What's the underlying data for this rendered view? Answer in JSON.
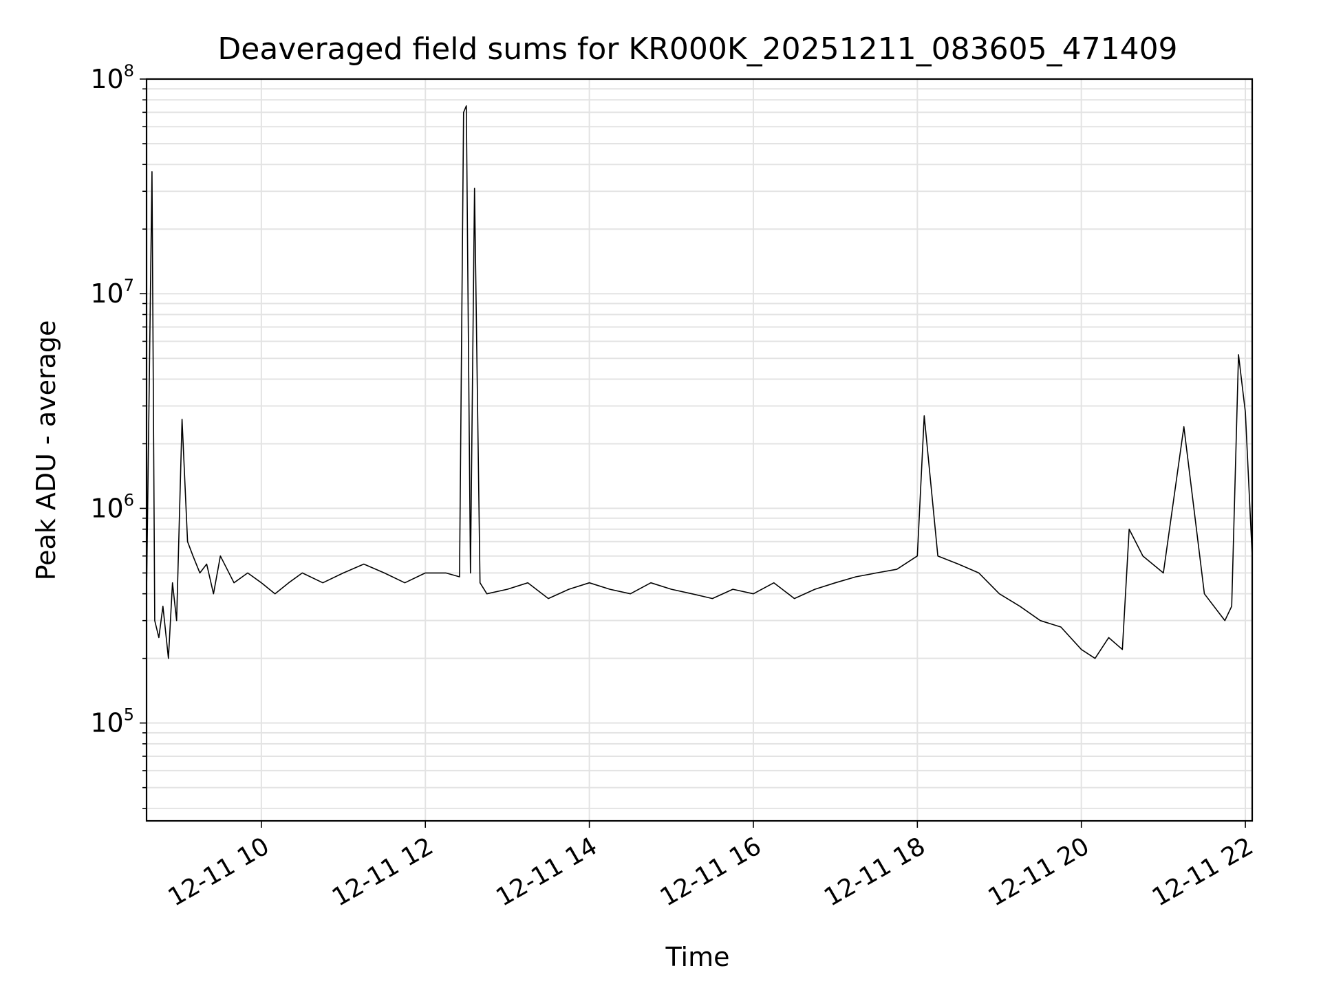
{
  "chart_data": {
    "type": "line",
    "title": "Deaveraged field sums for KR000K_20251211_083605_471409",
    "xlabel": "Time",
    "ylabel": "Peak ADU - average",
    "yscale": "log",
    "ylim": [
      35000,
      100000000
    ],
    "xlim": [
      "2025-12-11 08:36",
      "2025-12-11 22:05"
    ],
    "grid": true,
    "legend": "none",
    "line_color": "#000000",
    "x_ticks": [
      "12-11 10",
      "12-11 12",
      "12-11 14",
      "12-11 16",
      "12-11 18",
      "12-11 20",
      "12-11 22"
    ],
    "y_ticks": [
      {
        "base": "10",
        "exp": "5"
      },
      {
        "base": "10",
        "exp": "6"
      },
      {
        "base": "10",
        "exp": "7"
      },
      {
        "base": "10",
        "exp": "8"
      }
    ],
    "series": [
      {
        "x": [
          "2025-12-11 08:36",
          "2025-12-11 08:40",
          "2025-12-11 08:42",
          "2025-12-11 08:45",
          "2025-12-11 08:48",
          "2025-12-11 08:52",
          "2025-12-11 08:55",
          "2025-12-11 08:58",
          "2025-12-11 09:02",
          "2025-12-11 09:06",
          "2025-12-11 09:10",
          "2025-12-11 09:15",
          "2025-12-11 09:20",
          "2025-12-11 09:25",
          "2025-12-11 09:30",
          "2025-12-11 09:40",
          "2025-12-11 09:50",
          "2025-12-11 10:00",
          "2025-12-11 10:10",
          "2025-12-11 10:20",
          "2025-12-11 10:30",
          "2025-12-11 10:45",
          "2025-12-11 11:00",
          "2025-12-11 11:15",
          "2025-12-11 11:30",
          "2025-12-11 11:45",
          "2025-12-11 12:00",
          "2025-12-11 12:15",
          "2025-12-11 12:25",
          "2025-12-11 12:28",
          "2025-12-11 12:30",
          "2025-12-11 12:33",
          "2025-12-11 12:36",
          "2025-12-11 12:40",
          "2025-12-11 12:45",
          "2025-12-11 13:00",
          "2025-12-11 13:15",
          "2025-12-11 13:30",
          "2025-12-11 13:45",
          "2025-12-11 14:00",
          "2025-12-11 14:15",
          "2025-12-11 14:30",
          "2025-12-11 14:45",
          "2025-12-11 15:00",
          "2025-12-11 15:15",
          "2025-12-11 15:30",
          "2025-12-11 15:45",
          "2025-12-11 16:00",
          "2025-12-11 16:15",
          "2025-12-11 16:30",
          "2025-12-11 16:45",
          "2025-12-11 17:00",
          "2025-12-11 17:15",
          "2025-12-11 17:30",
          "2025-12-11 17:45",
          "2025-12-11 18:00",
          "2025-12-11 18:05",
          "2025-12-11 18:15",
          "2025-12-11 18:30",
          "2025-12-11 18:45",
          "2025-12-11 19:00",
          "2025-12-11 19:15",
          "2025-12-11 19:30",
          "2025-12-11 19:45",
          "2025-12-11 20:00",
          "2025-12-11 20:10",
          "2025-12-11 20:20",
          "2025-12-11 20:30",
          "2025-12-11 20:35",
          "2025-12-11 20:45",
          "2025-12-11 21:00",
          "2025-12-11 21:15",
          "2025-12-11 21:30",
          "2025-12-11 21:45",
          "2025-12-11 21:50",
          "2025-12-11 21:55",
          "2025-12-11 22:00",
          "2025-12-11 22:05"
        ],
        "y": [
          400000,
          37000000,
          300000,
          250000,
          350000,
          200000,
          450000,
          300000,
          2600000,
          700000,
          600000,
          500000,
          550000,
          400000,
          600000,
          450000,
          500000,
          450000,
          400000,
          450000,
          500000,
          450000,
          500000,
          550000,
          500000,
          450000,
          500000,
          500000,
          480000,
          70000000,
          75000000,
          500000,
          31000000,
          450000,
          400000,
          420000,
          450000,
          380000,
          420000,
          450000,
          420000,
          400000,
          450000,
          420000,
          400000,
          380000,
          420000,
          400000,
          450000,
          380000,
          420000,
          450000,
          480000,
          500000,
          520000,
          600000,
          2700000,
          600000,
          550000,
          500000,
          400000,
          350000,
          300000,
          280000,
          220000,
          200000,
          250000,
          220000,
          800000,
          600000,
          500000,
          2400000,
          400000,
          300000,
          350000,
          5200000,
          2800000,
          600000
        ]
      }
    ]
  }
}
